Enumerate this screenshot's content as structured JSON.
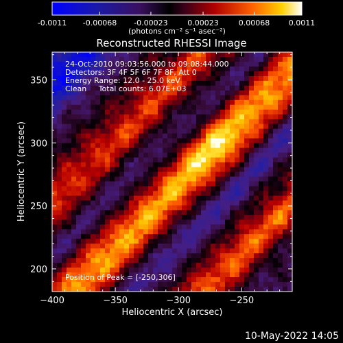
{
  "colorbar": {
    "ticks": [
      "-0.0011",
      "-0.00068",
      "-0.00023",
      "0.00023",
      "0.00068",
      "0.0011"
    ],
    "tick_values": [
      -0.0011,
      -0.00068,
      -0.00023,
      0.00023,
      0.00068,
      0.0011
    ],
    "range": [
      -0.0011,
      0.0011
    ],
    "unit_label": "(photons cm⁻² s⁻¹ asec⁻²)"
  },
  "chart_data": {
    "type": "heatmap",
    "title": "Reconstructed RHESSI Image",
    "xlabel": "Heliocentric X (arcsec)",
    "ylabel": "Heliocentric Y (arcsec)",
    "xlim": [
      -400,
      -210
    ],
    "ylim": [
      182,
      372
    ],
    "x_ticks": [
      -400,
      -350,
      -300,
      -250
    ],
    "y_ticks": [
      200,
      250,
      300,
      350
    ],
    "info_lines": [
      "24-Oct-2010 09:03:56.000 to 09:08:44.000",
      "Detectors: 3F 4F 5F 6F 7F 8F, Att 0",
      "Energy Range: 12.0 - 25.0 keV",
      "Clean     Total counts: 6.07E+03"
    ],
    "peak_label": "Position of Peak = [-250,306]",
    "peak": {
      "x": -250,
      "y": 306
    },
    "colormap": "rainbow-black-purple-red-yellow-white"
  },
  "footer": {
    "date": "10-May-2022 14:05"
  }
}
